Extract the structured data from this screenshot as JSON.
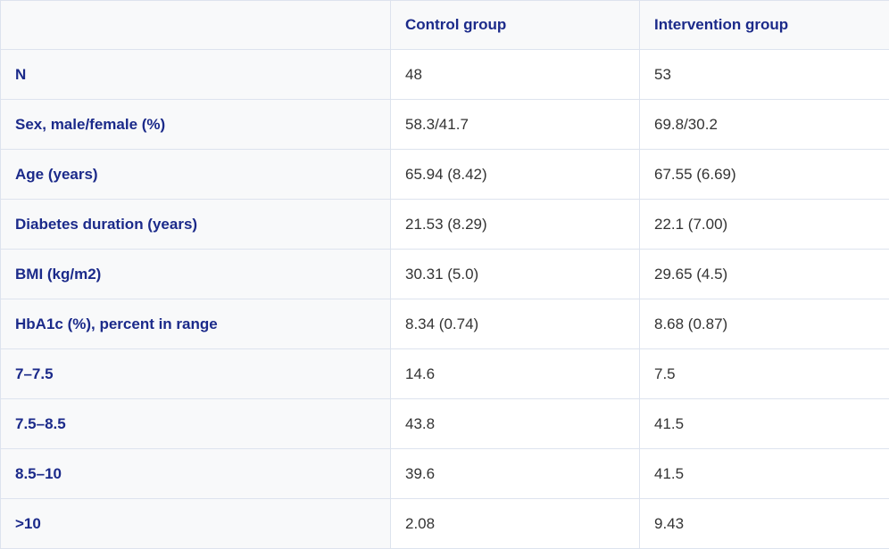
{
  "table": {
    "headers": [
      "",
      "Control group",
      "Intervention group"
    ],
    "rows": [
      {
        "label": "N",
        "control": "48",
        "intervention": "53"
      },
      {
        "label": "Sex, male/female (%)",
        "control": "58.3/41.7",
        "intervention": "69.8/30.2"
      },
      {
        "label": "Age (years)",
        "control": "65.94 (8.42)",
        "intervention": "67.55 (6.69)"
      },
      {
        "label": "Diabetes duration (years)",
        "control": "21.53 (8.29)",
        "intervention": "22.1 (7.00)"
      },
      {
        "label": "BMI (kg/m2)",
        "control": "30.31 (5.0)",
        "intervention": "29.65 (4.5)"
      },
      {
        "label": "HbA1c (%), percent in range",
        "control": "8.34 (0.74)",
        "intervention": "8.68 (0.87)"
      },
      {
        "label": "7–7.5",
        "control": "14.6",
        "intervention": "7.5"
      },
      {
        "label": "7.5–8.5",
        "control": "43.8",
        "intervention": "41.5"
      },
      {
        "label": "8.5–10",
        "control": "39.6",
        "intervention": "41.5"
      },
      {
        "label": ">10",
        "control": "2.08",
        "intervention": "9.43"
      }
    ]
  },
  "colors": {
    "header_text": "#1b2a8a",
    "header_background": "#f8f9fa",
    "border": "#dde3ee",
    "body_text": "#333333"
  }
}
